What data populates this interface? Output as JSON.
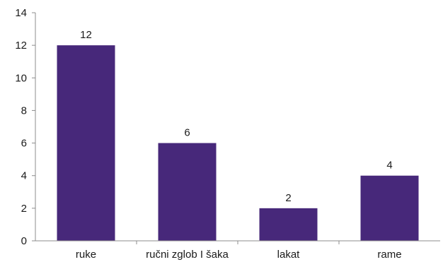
{
  "chart_data": {
    "type": "bar",
    "categories": [
      "ruke",
      "ručni zglob I šaka",
      "lakat",
      "rame"
    ],
    "values": [
      12,
      6,
      2,
      4
    ],
    "data_labels": [
      "12",
      "6",
      "2",
      "4"
    ],
    "ylim": [
      0,
      14
    ],
    "yticks": [
      0,
      2,
      4,
      6,
      8,
      10,
      12,
      14
    ],
    "title": "",
    "xlabel": "",
    "ylabel": "",
    "grid": false,
    "legend": "none",
    "bar_color": "#47287a",
    "axis_color": "#8c8c8c"
  }
}
